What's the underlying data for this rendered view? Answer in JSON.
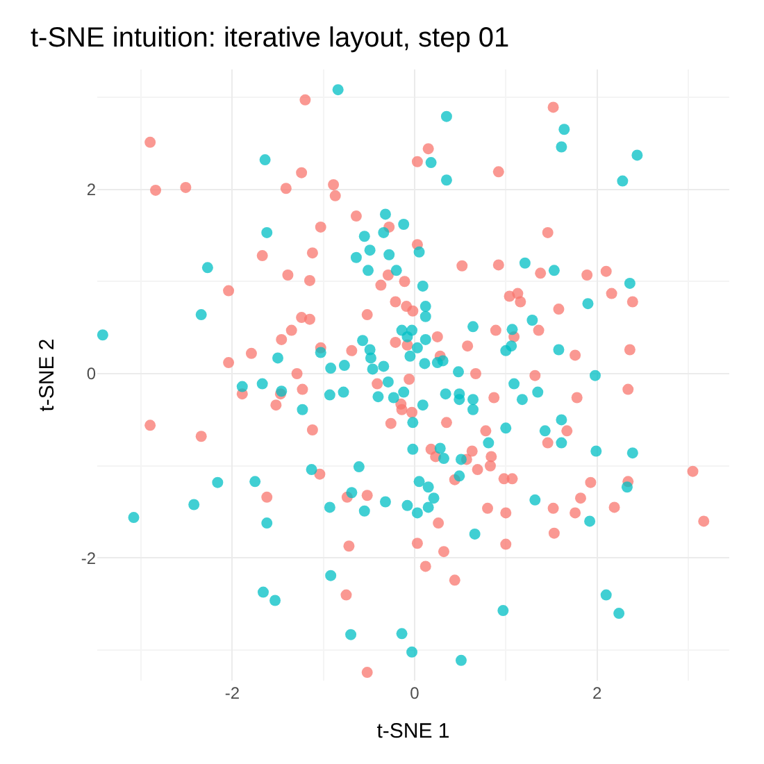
{
  "chart_data": {
    "type": "scatter",
    "title": "t-SNE intuition: iterative layout, step 01",
    "xlabel": "t-SNE 1",
    "ylabel": "t-SNE 2",
    "xlim": [
      -3.48,
      3.45
    ],
    "ylim": [
      -3.33,
      3.3
    ],
    "xticks": [
      -2,
      0,
      2
    ],
    "yticks": [
      -2,
      0,
      2
    ],
    "grid": true,
    "marker": "circle",
    "series": [
      {
        "color": "#f8766d",
        "x": [
          -2.9,
          -2.84,
          -2.51,
          -1.2,
          -1.24,
          -1.41,
          -0.89,
          -0.87,
          -0.64,
          -1.03,
          -0.28,
          -1.67,
          -1.12,
          -1.39,
          0.03,
          0.03,
          1.52,
          0.15,
          0.92,
          1.46,
          0.52,
          0.92,
          1.38,
          1.89,
          2.1,
          -1.15,
          -2.04,
          -0.29,
          -0.37,
          -0.11,
          -1.24,
          -1.15,
          -1.35,
          -1.46,
          -0.52,
          -0.21,
          -0.09,
          -0.02,
          -0.21,
          -0.08,
          -0.69,
          -1.03,
          -1.79,
          -2.04,
          -1.29,
          -1.89,
          -1.47,
          -1.23,
          -1.52,
          -0.41,
          -0.06,
          -0.15,
          -0.14,
          -0.03,
          -0.26,
          -1.12,
          -2.9,
          -2.34,
          -1.04,
          1.04,
          1.13,
          1.16,
          2.16,
          2.39,
          1.58,
          0.89,
          1.36,
          1.09,
          0.58,
          0.25,
          0.28,
          1.76,
          2.36,
          0.67,
          1.32,
          0.87,
          1.78,
          2.34,
          0.35,
          0.78,
          1.67,
          1.46,
          0.18,
          0.23,
          0.57,
          0.63,
          0.84,
          0.83,
          0.69,
          0.44,
          0.98,
          1.07,
          3.05,
          1.93,
          2.34,
          -1.62,
          -0.74,
          -0.52,
          -0.72,
          0.03,
          -0.75,
          -0.52,
          0.26,
          0.8,
          1.0,
          1.52,
          1.82,
          1.76,
          2.19,
          3.17,
          1.53,
          1.0,
          0.32,
          0.12,
          0.44
        ],
        "values": [
          2.51,
          1.99,
          2.02,
          2.97,
          2.18,
          2.01,
          2.05,
          1.93,
          1.71,
          1.59,
          1.59,
          1.28,
          1.31,
          1.07,
          2.3,
          1.4,
          2.89,
          2.44,
          2.19,
          1.53,
          1.17,
          1.18,
          1.09,
          1.07,
          1.11,
          1.01,
          0.9,
          1.07,
          0.96,
          1.0,
          0.61,
          0.59,
          0.47,
          0.37,
          0.64,
          0.78,
          0.73,
          0.68,
          0.34,
          0.31,
          0.25,
          0.28,
          0.22,
          0.12,
          0,
          -0.22,
          -0.22,
          -0.17,
          -0.34,
          -0.11,
          -0.06,
          -0.33,
          -0.39,
          -0.42,
          -0.54,
          -0.61,
          -0.56,
          -0.68,
          -1.09,
          0.84,
          0.87,
          0.78,
          0.87,
          0.78,
          0.7,
          0.47,
          0.47,
          0.4,
          0.3,
          0.4,
          0.19,
          0.2,
          0.26,
          0,
          -0.02,
          -0.26,
          -0.26,
          -0.17,
          -0.53,
          -0.62,
          -0.62,
          -0.75,
          -0.82,
          -0.9,
          -0.93,
          -0.84,
          -0.9,
          -1.0,
          -1.04,
          -1.15,
          -1.14,
          -1.14,
          -1.06,
          -1.18,
          -1.17,
          -1.34,
          -1.34,
          -1.32,
          -1.87,
          -1.84,
          -2.4,
          -3.24,
          -1.62,
          -1.46,
          -1.51,
          -1.46,
          -1.35,
          -1.51,
          -1.45,
          -1.6,
          -1.73,
          -1.85,
          -1.93,
          -2.09,
          -2.24
        ]
      },
      {
        "color": "#00bfc4",
        "x": [
          -0.84,
          -1.64,
          -1.62,
          -2.27,
          -0.32,
          -0.12,
          -0.55,
          -0.34,
          -0.49,
          -0.64,
          -0.28,
          -0.51,
          -0.2,
          0.05,
          0.35,
          1.64,
          1.61,
          0.18,
          0.35,
          2.44,
          2.28,
          1.21,
          1.53,
          -2.34,
          -3.42,
          -0.14,
          -0.03,
          -0.08,
          -0.05,
          -0.57,
          -0.49,
          -0.48,
          -1.03,
          -1.5,
          -0.92,
          -0.77,
          -0.46,
          -0.34,
          -1.89,
          -1.67,
          -1.46,
          -1.23,
          -0.93,
          -0.78,
          -0.29,
          -0.4,
          -0.23,
          -0.12,
          -0.02,
          -0.02,
          -0.61,
          -1.13,
          -2.16,
          -1.75,
          0.05,
          2.36,
          0.09,
          0.12,
          0.12,
          1.9,
          1.29,
          0.64,
          1.07,
          1.06,
          1.0,
          0.12,
          0.03,
          0.25,
          0.31,
          0.11,
          1.58,
          0.48,
          1.98,
          1.09,
          1.35,
          1.18,
          0.34,
          0.49,
          0.49,
          0.64,
          0.64,
          0.09,
          1.0,
          1.43,
          1.61,
          1.61,
          0.81,
          0.28,
          0.32,
          0.51,
          0.49,
          1.99,
          2.39,
          -2.42,
          -3.08,
          -1.62,
          -0.93,
          -0.69,
          -0.55,
          -0.32,
          -0.08,
          0.03,
          -0.92,
          -1.66,
          -1.53,
          -0.7,
          -0.14,
          -0.03,
          0.15,
          2.33,
          0.21,
          0.15,
          1.32,
          1.92,
          0.66,
          0.97,
          2.1,
          2.24,
          0.51
        ],
        "values": [
          3.08,
          2.32,
          1.53,
          1.15,
          1.73,
          1.62,
          1.49,
          1.53,
          1.34,
          1.26,
          1.29,
          1.12,
          1.12,
          1.32,
          2.79,
          2.65,
          2.46,
          2.29,
          2.1,
          2.37,
          2.09,
          1.2,
          1.12,
          0.64,
          0.42,
          0.47,
          0.47,
          0.4,
          0.19,
          0.36,
          0.26,
          0.17,
          0.23,
          0.17,
          0.06,
          0.09,
          0.05,
          0.08,
          -0.14,
          -0.11,
          -0.19,
          -0.39,
          -0.23,
          -0.2,
          -0.09,
          -0.25,
          -0.26,
          -0.2,
          -0.53,
          -0.82,
          -1.01,
          -1.04,
          -1.18,
          -1.17,
          -1.17,
          0.98,
          0.95,
          0.73,
          0.62,
          0.76,
          0.58,
          0.51,
          0.48,
          0.3,
          0.25,
          0.37,
          0.28,
          0.12,
          0.14,
          0.11,
          0.26,
          0.02,
          -0.02,
          -0.11,
          -0.2,
          -0.28,
          -0.22,
          -0.22,
          -0.28,
          -0.28,
          -0.39,
          -0.34,
          -0.59,
          -0.62,
          -0.5,
          -0.75,
          -0.75,
          -0.81,
          -0.92,
          -0.93,
          -1.11,
          -0.84,
          -0.86,
          -1.42,
          -1.56,
          -1.62,
          -1.45,
          -1.29,
          -1.49,
          -1.39,
          -1.43,
          -1.51,
          -2.19,
          -2.37,
          -2.46,
          -2.83,
          -2.82,
          -3.02,
          -1.23,
          -1.23,
          -1.35,
          -1.45,
          -1.37,
          -1.6,
          -1.74,
          -2.57,
          -2.4,
          -2.6,
          -3.11
        ]
      }
    ]
  }
}
